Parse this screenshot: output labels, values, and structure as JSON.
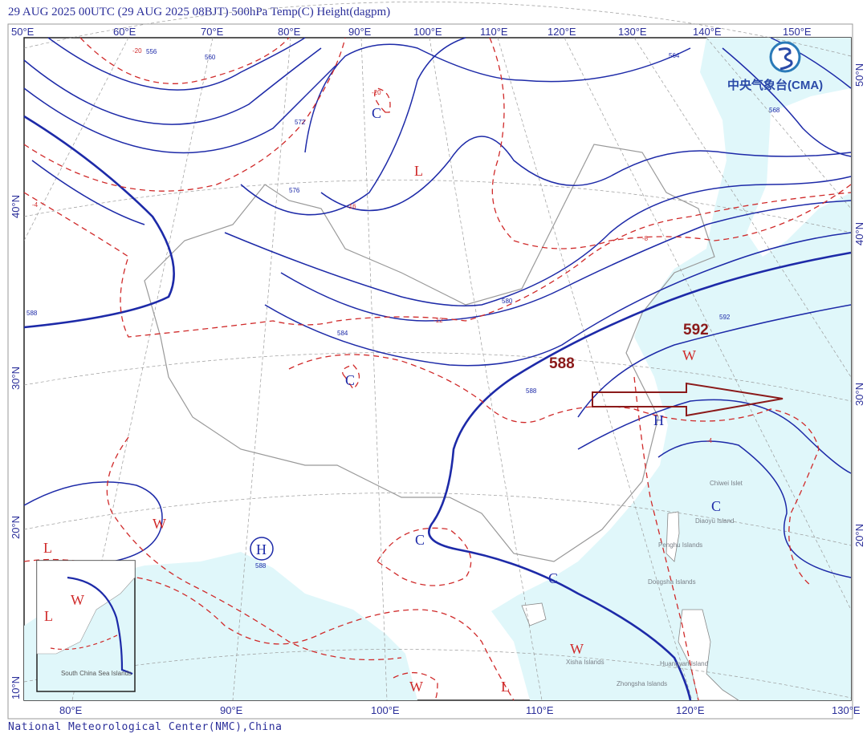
{
  "header": {
    "title": "29 AUG 2025 00UTC  (29 AUG 2025 08BJT) 500hPa Temp(C) Height(dagpm)"
  },
  "footer": {
    "credit": "National Meteorological Center(NMC),China"
  },
  "logo": {
    "text": "中央气象台(CMA)",
    "icon": "cma-logo-icon",
    "color": "#2a4aa8"
  },
  "axes": {
    "top_lon": [
      "50°E",
      "60°E",
      "70°E",
      "80°E",
      "90°E",
      "100°E",
      "110°E",
      "120°E",
      "130°E",
      "140°E",
      "150°E"
    ],
    "bottom_lon": [
      "80°E",
      "90°E",
      "100°E",
      "110°E",
      "120°E",
      "130°E"
    ],
    "left_lat": [
      "40°N",
      "30°N",
      "20°N",
      "10°N"
    ],
    "right_lat": [
      "50°N",
      "40°N",
      "30°N",
      "20°N"
    ]
  },
  "systems": [
    {
      "label": "C",
      "type": "cold center"
    },
    {
      "label": "L",
      "type": "low"
    },
    {
      "label": "C",
      "type": "cold center"
    },
    {
      "label": "H",
      "type": "high"
    },
    {
      "label": "W",
      "type": "warm center"
    },
    {
      "label": "C",
      "type": "cold center"
    },
    {
      "label": "C",
      "type": "cold center"
    },
    {
      "label": "C",
      "type": "cold center"
    },
    {
      "label": "W",
      "type": "warm center"
    },
    {
      "label": "W",
      "type": "warm center"
    },
    {
      "label": "L",
      "type": "low"
    },
    {
      "label": "H",
      "type": "high"
    },
    {
      "label": "W",
      "type": "warm center"
    },
    {
      "label": "L",
      "type": "low"
    },
    {
      "label": "W",
      "type": "warm center"
    },
    {
      "label": "L",
      "type": "low"
    }
  ],
  "annotations": {
    "big_588": "588",
    "big_592": "592",
    "arrow_direction": "east",
    "arrow_color": "#8b1a1a"
  },
  "height_contour_labels": [
    "556",
    "560",
    "564",
    "568",
    "572",
    "576",
    "580",
    "584",
    "588",
    "588",
    "592",
    "588",
    "588"
  ],
  "temp_contour_labels": [
    "-20",
    "-16",
    "-12",
    "-8",
    "-4",
    "-20",
    "-4"
  ],
  "islands": [
    "Chiwei Islet",
    "Diaoyu Island",
    "Penghu Islands",
    "Dongsha Islands",
    "Huangyan Island",
    "Zhongsha Islands",
    "Xisha Islands",
    "South China Sea Islands"
  ],
  "colors": {
    "height_contour": "#1d2aa8",
    "temp_contour": "#d02a2a",
    "ocean": "#e0f7fa",
    "land": "#ffffff",
    "text": "#2b2f9a"
  }
}
